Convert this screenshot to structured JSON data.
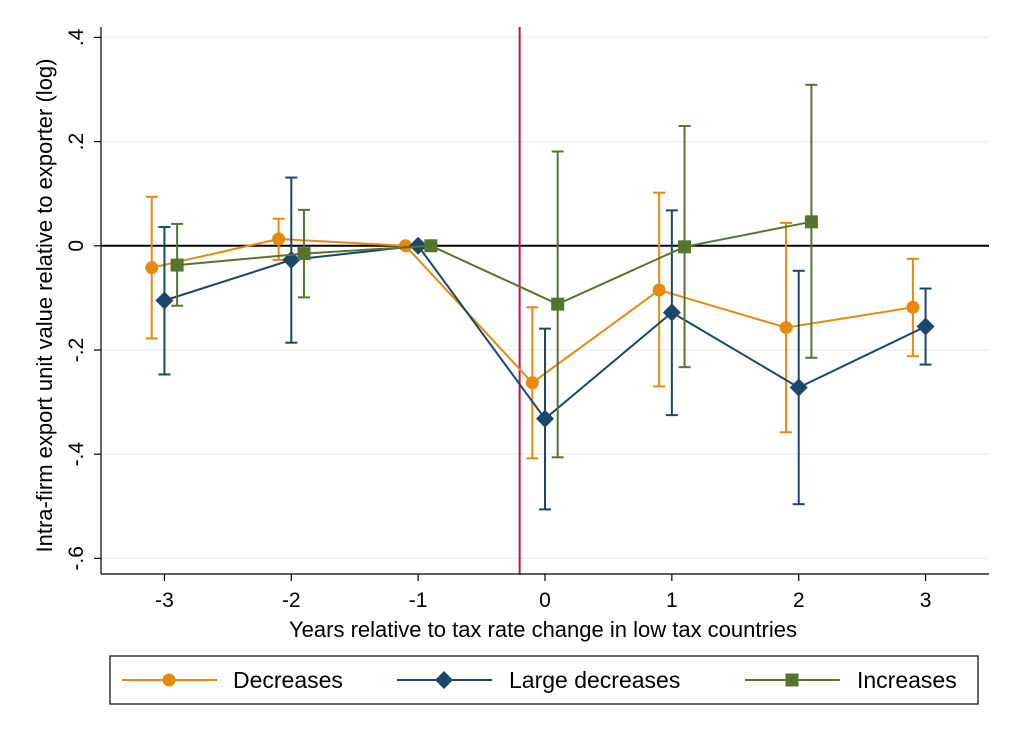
{
  "chart_data": {
    "type": "line",
    "title": "",
    "xlabel": "Years relative to tax rate change in low tax countries",
    "ylabel": "Intra-firm export unit value relative to exporter (log)",
    "xlim": [
      -3.5,
      3.5
    ],
    "ylim": [
      -0.63,
      0.42
    ],
    "x_ticks": [
      -3,
      -2,
      -1,
      0,
      1,
      2,
      3
    ],
    "x_tick_labels": [
      "-3",
      "-2",
      "-1",
      "0",
      "1",
      "2",
      "3"
    ],
    "y_ticks": [
      -0.6,
      -0.4,
      -0.2,
      0,
      0.2,
      0.4
    ],
    "y_tick_labels": [
      "-.6",
      "-.4",
      "-.2",
      "0",
      ".2",
      ".4"
    ],
    "grid": true,
    "reference_lines": {
      "horizontal_at": 0,
      "vertical_at": -0.2,
      "vertical_color": "#c0144e"
    },
    "legend": {
      "position": "bottom"
    },
    "series": [
      {
        "name": "Decreases",
        "color": "#e8890c",
        "marker": "circle",
        "x": [
          -3.1,
          -2.1,
          -1.1,
          -0.1,
          0.9,
          1.9,
          2.9
        ],
        "y": [
          -0.042,
          0.013,
          0.0,
          -0.263,
          -0.085,
          -0.157,
          -0.118
        ],
        "ci_low": [
          -0.178,
          -0.027,
          0.0,
          -0.408,
          -0.27,
          -0.358,
          -0.212
        ],
        "ci_high": [
          0.094,
          0.052,
          0.0,
          -0.118,
          0.102,
          0.044,
          -0.025
        ]
      },
      {
        "name": "Large decreases",
        "color": "#1a476f",
        "marker": "diamond",
        "x": [
          -3.0,
          -2.0,
          -1.0,
          0.0,
          1.0,
          2.0,
          3.0
        ],
        "y": [
          -0.105,
          -0.027,
          0.0,
          -0.332,
          -0.128,
          -0.272,
          -0.155
        ],
        "ci_low": [
          -0.247,
          -0.186,
          0.0,
          -0.506,
          -0.325,
          -0.496,
          -0.228
        ],
        "ci_high": [
          0.036,
          0.131,
          0.0,
          -0.159,
          0.068,
          -0.048,
          -0.082
        ]
      },
      {
        "name": "Increases",
        "color": "#55752f",
        "marker": "square",
        "x": [
          -2.9,
          -1.9,
          -0.9,
          0.1,
          1.1,
          2.1
        ],
        "y": [
          -0.037,
          -0.015,
          0.0,
          -0.112,
          -0.002,
          0.046
        ],
        "ci_low": [
          -0.115,
          -0.099,
          0.0,
          -0.406,
          -0.233,
          -0.215
        ],
        "ci_high": [
          0.042,
          0.069,
          0.0,
          0.181,
          0.23,
          0.309
        ]
      }
    ]
  }
}
